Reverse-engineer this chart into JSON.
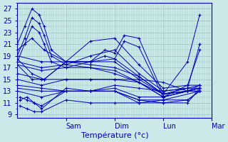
{
  "xlabel": "Température (°c)",
  "background_color": "#cce8e8",
  "plot_background": "#cce8e8",
  "grid_color": "#99c4c4",
  "line_color": "#0000bb",
  "ylim": [
    8.5,
    28.0
  ],
  "yticks": [
    9,
    11,
    13,
    15,
    17,
    19,
    21,
    23,
    25,
    27
  ],
  "xlim": [
    0.0,
    4.0
  ],
  "day_positions": [
    1.0,
    2.0,
    3.0,
    4.0
  ],
  "day_labels": [
    "Sam",
    "Dim",
    "Lun",
    "Mar"
  ],
  "series": [
    {
      "x": [
        0.0,
        0.15,
        0.3,
        0.45,
        0.55,
        0.7,
        1.0,
        1.5,
        2.0,
        2.5,
        3.0,
        3.5,
        3.75
      ],
      "y": [
        21.0,
        24.0,
        27.0,
        26.0,
        24.0,
        20.0,
        18.0,
        21.5,
        22.0,
        17.5,
        13.5,
        14.0,
        14.0
      ]
    },
    {
      "x": [
        0.0,
        0.15,
        0.3,
        0.45,
        0.55,
        0.7,
        1.0,
        1.5,
        2.0,
        2.5,
        3.0,
        3.5,
        3.75
      ],
      "y": [
        19.0,
        22.0,
        25.5,
        24.5,
        22.5,
        19.0,
        17.5,
        19.0,
        20.0,
        16.0,
        13.0,
        13.5,
        13.5
      ]
    },
    {
      "x": [
        0.0,
        0.15,
        0.3,
        0.45,
        0.55,
        0.7,
        1.0,
        1.5,
        2.0,
        2.5,
        3.0,
        3.5,
        3.75
      ],
      "y": [
        18.0,
        21.0,
        24.0,
        23.0,
        21.0,
        18.0,
        17.0,
        18.0,
        18.5,
        15.5,
        12.5,
        13.0,
        13.0
      ]
    },
    {
      "x": [
        0.0,
        0.3,
        0.55,
        1.0,
        1.5,
        2.0,
        2.5,
        3.0,
        3.5,
        3.75
      ],
      "y": [
        20.0,
        22.0,
        20.0,
        18.0,
        18.0,
        18.0,
        15.0,
        12.5,
        13.0,
        13.0
      ]
    },
    {
      "x": [
        0.0,
        0.5,
        1.0,
        1.5,
        2.0,
        2.5,
        3.0,
        3.5,
        3.75
      ],
      "y": [
        19.0,
        18.0,
        18.0,
        17.5,
        17.0,
        15.5,
        12.5,
        13.5,
        21.0
      ]
    },
    {
      "x": [
        0.0,
        0.5,
        1.0,
        1.5,
        2.0,
        2.5,
        3.0,
        3.5,
        3.75
      ],
      "y": [
        18.0,
        17.0,
        17.5,
        17.0,
        16.5,
        14.5,
        12.0,
        13.0,
        14.0
      ]
    },
    {
      "x": [
        0.0,
        0.5,
        1.0,
        1.5,
        2.0,
        2.5,
        3.0,
        3.5,
        3.75
      ],
      "y": [
        17.5,
        16.5,
        17.0,
        17.0,
        16.0,
        14.5,
        12.5,
        13.0,
        13.5
      ]
    },
    {
      "x": [
        0.0,
        0.5,
        1.0,
        1.5,
        2.0,
        2.5,
        3.0,
        3.5,
        3.75
      ],
      "y": [
        16.0,
        15.0,
        15.0,
        15.0,
        15.0,
        15.0,
        14.5,
        13.0,
        13.5
      ]
    },
    {
      "x": [
        0.0,
        0.5,
        1.0,
        1.5,
        2.0,
        2.5,
        3.0,
        3.5,
        3.75
      ],
      "y": [
        15.0,
        14.0,
        15.0,
        15.0,
        15.0,
        14.5,
        12.0,
        13.0,
        13.0
      ]
    },
    {
      "x": [
        0.0,
        0.5,
        1.0,
        1.5,
        2.0,
        2.5,
        3.0,
        3.75
      ],
      "y": [
        14.0,
        13.5,
        13.0,
        13.0,
        13.0,
        11.5,
        11.5,
        13.0
      ]
    },
    {
      "x": [
        0.0,
        0.5,
        1.0,
        1.5,
        2.0,
        2.5,
        3.0,
        3.75
      ],
      "y": [
        13.5,
        13.0,
        13.0,
        13.0,
        13.5,
        12.0,
        12.0,
        13.5
      ]
    },
    {
      "x": [
        0.0,
        0.5,
        1.0,
        1.5,
        2.0,
        2.5,
        3.0,
        3.5,
        3.75
      ],
      "y": [
        13.0,
        12.0,
        13.0,
        13.0,
        14.0,
        13.5,
        13.0,
        13.5,
        14.0
      ]
    },
    {
      "x": [
        0.05,
        0.2,
        0.35,
        0.5,
        1.0,
        1.5,
        2.0,
        2.5,
        3.0,
        3.5,
        3.75
      ],
      "y": [
        11.5,
        12.0,
        11.0,
        10.5,
        13.0,
        13.0,
        13.0,
        11.5,
        11.0,
        11.5,
        13.0
      ]
    },
    {
      "x": [
        0.05,
        0.2,
        0.35,
        0.5,
        1.0,
        1.5,
        2.0,
        2.5,
        3.0,
        3.5,
        3.75
      ],
      "y": [
        12.0,
        11.5,
        11.0,
        10.0,
        13.5,
        13.0,
        13.0,
        11.0,
        11.0,
        11.0,
        13.5
      ]
    },
    {
      "x": [
        0.05,
        0.2,
        0.35,
        0.5,
        1.0,
        1.5,
        2.0,
        2.5,
        3.0,
        3.5,
        3.75
      ],
      "y": [
        10.5,
        10.0,
        9.5,
        9.5,
        11.5,
        11.0,
        11.0,
        11.0,
        11.5,
        11.5,
        13.0
      ]
    },
    {
      "x": [
        0.0,
        0.3,
        0.55,
        1.0,
        1.5,
        1.8,
        2.0,
        2.2,
        2.5,
        3.0,
        3.5,
        3.75
      ],
      "y": [
        18.5,
        16.0,
        15.0,
        18.0,
        18.0,
        20.0,
        19.5,
        22.5,
        22.0,
        12.5,
        18.0,
        26.0
      ]
    },
    {
      "x": [
        0.0,
        0.3,
        0.55,
        1.0,
        1.5,
        1.8,
        2.0,
        2.2,
        2.5,
        3.0,
        3.5,
        3.75
      ],
      "y": [
        17.5,
        15.0,
        15.0,
        18.0,
        18.0,
        19.0,
        18.5,
        21.5,
        20.5,
        12.0,
        14.0,
        20.0
      ]
    }
  ]
}
